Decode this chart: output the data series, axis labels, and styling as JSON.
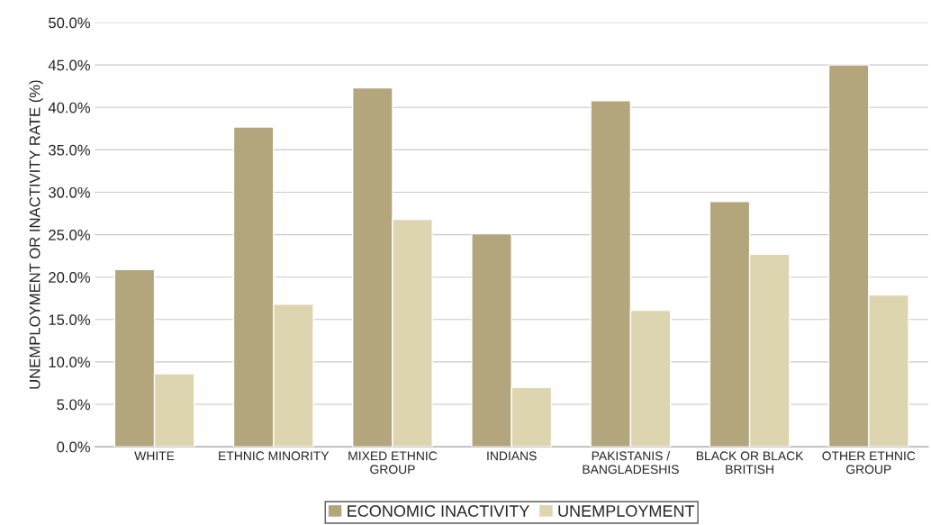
{
  "chart_data": {
    "type": "bar",
    "ylabel": "UNEMPLOYMENT OR INACTIVITY RATE (%)",
    "categories": [
      "WHITE",
      "ETHNIC MINORITY",
      "MIXED ETHNIC\nGROUP",
      "INDIANS",
      "PAKISTANIS /\nBANGLADESHIS",
      "BLACK OR BLACK\nBRITISH",
      "OTHER ETHNIC\nGROUP"
    ],
    "series": [
      {
        "name": "ECONOMIC INACTIVITY",
        "color": "#b3a57c",
        "values": [
          20.9,
          37.7,
          42.3,
          25.1,
          40.8,
          28.9,
          45.0
        ]
      },
      {
        "name": "UNEMPLOYMENT",
        "color": "#ddd4b0",
        "values": [
          8.6,
          16.8,
          26.8,
          7.0,
          16.1,
          22.7,
          17.9
        ]
      }
    ],
    "ylim": [
      0,
      50
    ],
    "yticks": [
      {
        "value": 0,
        "label": "0.0%"
      },
      {
        "value": 5,
        "label": "5.0%"
      },
      {
        "value": 10,
        "label": "10.0%"
      },
      {
        "value": 15,
        "label": "15.0%"
      },
      {
        "value": 20,
        "label": "20.0%"
      },
      {
        "value": 25,
        "label": "25.0%"
      },
      {
        "value": 30,
        "label": "30.0%"
      },
      {
        "value": 35,
        "label": "35.0%"
      },
      {
        "value": 40,
        "label": "40.0%"
      },
      {
        "value": 45,
        "label": "45.0%"
      },
      {
        "value": 50,
        "label": "50.0%"
      }
    ],
    "grid": "y",
    "legend": "bottom"
  }
}
